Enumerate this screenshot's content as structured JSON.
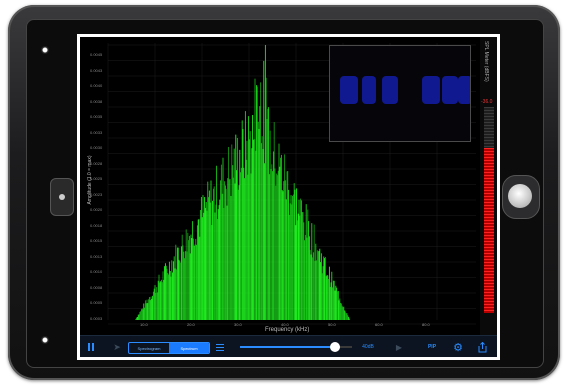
{
  "meter": {
    "label": "SPL Meter (dBFS)",
    "value": "-36.0",
    "level": 0.8
  },
  "axes": {
    "xlabel": "Frequency (kHz)",
    "ylabel": "Amplitude (1.0 = max)",
    "xticks": [
      "10.0",
      "20.0",
      "30.0",
      "40.0",
      "50.0",
      "60.0",
      "80.0"
    ],
    "yticks": [
      "0.0045",
      "0.0043",
      "0.0040",
      "0.0038",
      "0.0035",
      "0.0033",
      "0.0030",
      "0.0028",
      "0.0025",
      "0.0023",
      "0.0020",
      "0.0018",
      "0.0015",
      "0.0013",
      "0.0010",
      "0.0008",
      "0.0005",
      "0.0003"
    ]
  },
  "toolbar": {
    "mode_spectrogram": "Spectrogram",
    "mode_spectrum": "Spectrum",
    "gain_label": "40dB",
    "pip_label": "PIP",
    "gain_level": 0.95,
    "icons": [
      "pause-icon",
      "arrow-icon",
      "list-icon",
      "play-icon",
      "gear-icon",
      "share-icon"
    ]
  },
  "colors": {
    "spectrum": "#22ff22",
    "accent": "#2a8cff",
    "meter": "#ff2020",
    "spectrogram": "#1a2aff"
  }
}
